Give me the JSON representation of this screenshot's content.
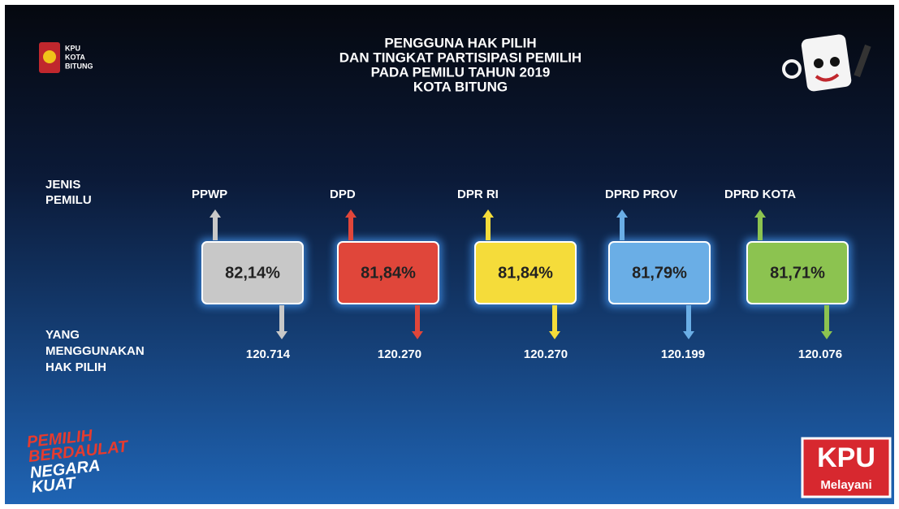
{
  "header": {
    "logo": [
      "KPU",
      "KOTA",
      "BITUNG"
    ],
    "title": [
      "PENGGUNA HAK PILIH",
      "DAN TINGKAT PARTISIPASI PEMILIH",
      "PADA PEMILU TAHUN 2019",
      "KOTA BITUNG"
    ]
  },
  "row_labels": {
    "type": [
      "JENIS",
      "PEMILU"
    ],
    "voters": [
      "YANG",
      "MENGGUNAKAN",
      "HAK PILIH"
    ]
  },
  "items": [
    {
      "name": "PPWP",
      "percent": "82,14%",
      "voters": "120.714",
      "color": "#c8c8c8"
    },
    {
      "name": "DPD",
      "percent": "81,84%",
      "voters": "120.270",
      "color": "#e0463a"
    },
    {
      "name": "DPR RI",
      "percent": "81,84%",
      "voters": "120.270",
      "color": "#f5dc3a"
    },
    {
      "name": "DPRD PROV",
      "percent": "81,79%",
      "voters": "120.199",
      "color": "#6aaee6"
    },
    {
      "name": "DPRD KOTA",
      "percent": "81,71%",
      "voters": "120.076",
      "color": "#8cc350"
    }
  ],
  "footer": {
    "slogan": [
      "PEMILIH",
      "BERDAULAT",
      "NEGARA",
      "KUAT"
    ],
    "badge": [
      "KPU",
      "Melayani"
    ]
  }
}
